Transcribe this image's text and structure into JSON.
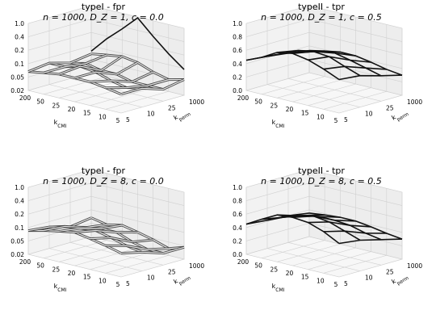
{
  "chart_data": [
    {
      "type": "surface3d",
      "title_line1": "typeI - fpr",
      "title_line2": "n = 1000, D_Z = 1, c = 0.0",
      "z_scale": "log",
      "zlim": [
        0.02,
        1.0
      ],
      "z_ticks": [
        "1.0",
        "0.4",
        "0.2",
        "0.1",
        "0.05",
        "0.02"
      ],
      "x_label": "k_CMI",
      "x_ticks": [
        "200",
        "50",
        "25",
        "20",
        "15",
        "10",
        "5"
      ],
      "y_label": "k_perm",
      "y_ticks": [
        "1000",
        "25",
        "10",
        "5"
      ],
      "grid": true,
      "surface_style": "double-line gray",
      "values": [
        [
          0.06,
          0.07,
          0.08,
          0.08,
          0.08,
          0.07,
          0.06
        ],
        [
          0.07,
          0.07,
          0.09,
          0.08,
          0.06,
          0.05,
          0.06
        ],
        [
          0.05,
          0.06,
          0.05,
          0.05,
          0.04,
          0.04,
          0.04
        ],
        [
          0.06,
          0.07,
          0.08,
          0.07,
          0.05,
          0.04,
          0.05
        ]
      ],
      "peak_line": [
        0.07,
        0.18,
        0.4,
        0.95,
        0.4,
        0.18,
        0.09
      ]
    },
    {
      "type": "surface3d",
      "title_line1": "typeII - tpr",
      "title_line2": "n = 1000, D_Z = 1, c = 0.5",
      "z_scale": "linear",
      "zlim": [
        0.0,
        1.0
      ],
      "z_ticks": [
        "1.0",
        "0.8",
        "0.6",
        "0.4",
        "0.2",
        "0.0"
      ],
      "x_label": "k_CMI",
      "x_ticks": [
        "200",
        "50",
        "25",
        "20",
        "15",
        "10",
        "5"
      ],
      "y_label": "k_perm",
      "y_ticks": [
        "1000",
        "25",
        "10",
        "5"
      ],
      "grid": true,
      "surface_style": "single black",
      "values": [
        [
          0.45,
          0.55,
          0.68,
          0.72,
          0.68,
          0.6,
          0.5
        ],
        [
          0.42,
          0.52,
          0.62,
          0.66,
          0.64,
          0.55,
          0.47
        ],
        [
          0.38,
          0.45,
          0.52,
          0.55,
          0.5,
          0.44,
          0.38
        ],
        [
          0.33,
          0.38,
          0.42,
          0.42,
          0.38,
          0.33,
          0.3
        ]
      ]
    },
    {
      "type": "surface3d",
      "title_line1": "typeI - fpr",
      "title_line2": "n = 1000, D_Z = 8, c = 0.0",
      "z_scale": "log",
      "zlim": [
        0.02,
        1.0
      ],
      "z_ticks": [
        "1.0",
        "0.4",
        "0.2",
        "0.1",
        "0.05",
        "0.02"
      ],
      "x_label": "k_CMI",
      "x_ticks": [
        "200",
        "50",
        "25",
        "20",
        "15",
        "10",
        "5"
      ],
      "y_label": "k_perm",
      "y_ticks": [
        "1000",
        "25",
        "10",
        "5"
      ],
      "grid": true,
      "surface_style": "double-line gray",
      "values": [
        [
          0.08,
          0.1,
          0.12,
          0.14,
          0.12,
          0.1,
          0.08
        ],
        [
          0.07,
          0.09,
          0.1,
          0.11,
          0.09,
          0.07,
          0.06
        ],
        [
          0.05,
          0.06,
          0.07,
          0.07,
          0.05,
          0.04,
          0.04
        ],
        [
          0.06,
          0.05,
          0.06,
          0.05,
          0.04,
          0.03,
          0.04
        ]
      ]
    },
    {
      "type": "surface3d",
      "title_line1": "typeII - tpr",
      "title_line2": "n = 1000, D_Z = 8, c = 0.5",
      "z_scale": "linear",
      "zlim": [
        0.0,
        1.0
      ],
      "z_ticks": [
        "1.0",
        "0.8",
        "0.6",
        "0.4",
        "0.2",
        "0.0"
      ],
      "x_label": "k_CMI",
      "x_ticks": [
        "200",
        "50",
        "25",
        "20",
        "15",
        "10",
        "5"
      ],
      "y_label": "k_perm",
      "y_ticks": [
        "1000",
        "25",
        "10",
        "5"
      ],
      "grid": true,
      "surface_style": "single black",
      "values": [
        [
          0.45,
          0.58,
          0.7,
          0.72,
          0.7,
          0.62,
          0.5
        ],
        [
          0.42,
          0.52,
          0.6,
          0.65,
          0.62,
          0.54,
          0.46
        ],
        [
          0.4,
          0.46,
          0.5,
          0.5,
          0.48,
          0.42,
          0.38
        ],
        [
          0.35,
          0.38,
          0.4,
          0.4,
          0.37,
          0.33,
          0.3
        ]
      ]
    }
  ]
}
